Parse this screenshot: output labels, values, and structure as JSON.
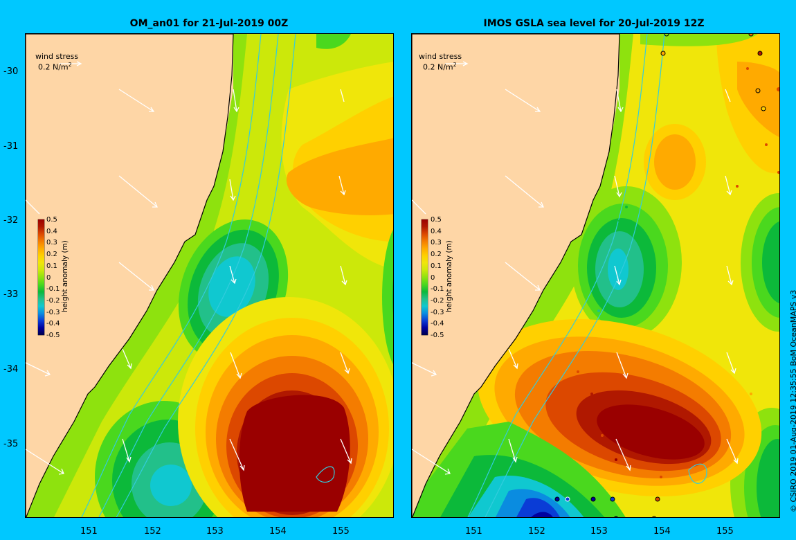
{
  "panels": [
    {
      "title": "OM_an01 for 21-Jul-2019 00Z",
      "wind_label": "wind stress",
      "wind_scale": "0.2 N/m",
      "wind_scale_sup": "2",
      "colorbar_label": "height anomaly (m)",
      "colorbar_ticks": [
        "0.5",
        "0.4",
        "0.3",
        "0.2",
        "0.1",
        "0",
        "-0.1",
        "-0.2",
        "-0.3",
        "-0.4",
        "-0.5"
      ],
      "x_ticks": [
        "151",
        "152",
        "153",
        "154",
        "155"
      ],
      "y_ticks": [
        "-30",
        "-31",
        "-32",
        "-33",
        "-34",
        "-35"
      ]
    },
    {
      "title": "IMOS GSLA sea level  for 20-Jul-2019 12Z",
      "wind_label": "wind stress",
      "wind_scale": "0.2 N/m",
      "wind_scale_sup": "2",
      "colorbar_label": "height anomaly (m)",
      "colorbar_ticks": [
        "0.5",
        "0.4",
        "0.3",
        "0.2",
        "0.1",
        "0",
        "-0.1",
        "-0.2",
        "-0.3",
        "-0.4",
        "-0.5"
      ],
      "x_ticks": [
        "151",
        "152",
        "153",
        "154",
        "155"
      ]
    }
  ],
  "credit": "© CSIRO 2019   01-Aug-2019 12:35:55 BoM OceanMAPS v3",
  "colors": {
    "land": "#fed6a6",
    "background": "#00c8ff",
    "contour": "#33ccdd",
    "arrow": "#ffffff",
    "anomaly_scale": [
      "#00004a",
      "#0000a0",
      "#0a3cd6",
      "#0a8ce0",
      "#10c8d0",
      "#22c08a",
      "#0cb93a",
      "#4ad81e",
      "#8ee20e",
      "#cce80a",
      "#f0e60a",
      "#ffd000",
      "#ffaa00",
      "#f47c00",
      "#dc4800",
      "#b01800",
      "#9a0000"
    ]
  }
}
